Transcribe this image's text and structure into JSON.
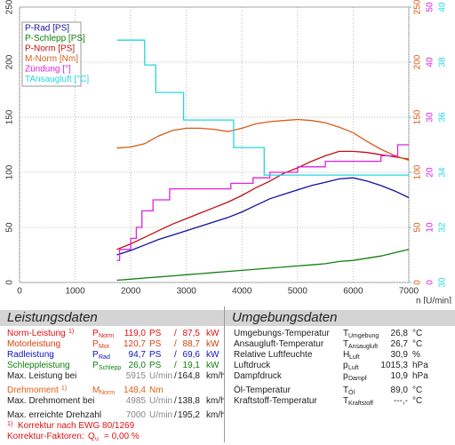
{
  "chart_data": {
    "type": "line",
    "xlabel": "n [U/min]",
    "xlim": [
      0,
      7000
    ],
    "xticks": [
      0,
      1000,
      2000,
      3000,
      4000,
      5000,
      6000,
      7000
    ],
    "ylim": [
      0,
      250
    ],
    "yticks": [
      0,
      50,
      100,
      150,
      200,
      250
    ],
    "right_axes": [
      {
        "id": "y2",
        "color": "#d85a1a",
        "lim": [
          0,
          250
        ],
        "ticks": [
          0,
          50,
          100,
          150,
          200,
          250
        ]
      },
      {
        "id": "y3",
        "color": "#e020e0",
        "lim": [
          0,
          50
        ],
        "ticks": [
          0,
          10,
          20,
          30,
          40,
          50
        ]
      },
      {
        "id": "y4",
        "color": "#20d8e0",
        "lim": [
          30,
          40
        ],
        "ticks": [
          30,
          32,
          34,
          36,
          38,
          40
        ]
      }
    ],
    "grid": true,
    "legend": "upper left",
    "series": [
      {
        "name": "P-Rad [PS]",
        "color": "#1010a0",
        "axis": "y",
        "x": [
          1750,
          2000,
          2250,
          2500,
          2750,
          3000,
          3250,
          3500,
          3750,
          4000,
          4250,
          4500,
          4750,
          5000,
          5250,
          5500,
          5750,
          6000,
          6250,
          6500,
          6750,
          7000
        ],
        "values": [
          25,
          29,
          34,
          39,
          43,
          47,
          51,
          55,
          59,
          64,
          70,
          76,
          80,
          84,
          88,
          91,
          94,
          95,
          92,
          88,
          83,
          77
        ]
      },
      {
        "name": "P-Schlepp [PS]",
        "color": "#108010",
        "axis": "y",
        "x": [
          1750,
          2000,
          2250,
          2500,
          2750,
          3000,
          3250,
          3500,
          3750,
          4000,
          4250,
          4500,
          4750,
          5000,
          5250,
          5500,
          5750,
          6000,
          6250,
          6500,
          6750,
          7000
        ],
        "values": [
          2,
          3,
          4,
          5,
          6,
          7,
          8,
          9,
          10,
          11,
          12,
          13,
          14,
          15,
          16,
          17,
          19,
          20,
          22,
          24,
          27,
          30
        ]
      },
      {
        "name": "P-Norm [PS]",
        "color": "#c01010",
        "axis": "y",
        "x": [
          1750,
          2000,
          2250,
          2500,
          2750,
          3000,
          3250,
          3500,
          3750,
          4000,
          4250,
          4500,
          4750,
          5000,
          5250,
          5500,
          5750,
          6000,
          6250,
          6500,
          6750,
          7000
        ],
        "values": [
          30,
          35,
          41,
          47,
          53,
          58,
          63,
          68,
          73,
          79,
          86,
          92,
          99,
          104,
          110,
          115,
          119,
          119,
          118,
          116,
          114,
          112
        ]
      },
      {
        "name": "M-Norm [Nm]",
        "color": "#d85a1a",
        "axis": "y2",
        "x": [
          1750,
          2000,
          2250,
          2500,
          2750,
          3000,
          3250,
          3500,
          3750,
          4000,
          4250,
          4500,
          4750,
          5000,
          5250,
          5500,
          5750,
          6000,
          6250,
          6500,
          6750,
          7000
        ],
        "values": [
          122,
          123,
          126,
          133,
          138,
          140,
          140,
          139,
          137,
          140,
          144,
          146,
          147,
          148,
          147,
          145,
          141,
          136,
          128,
          121,
          115,
          111
        ]
      },
      {
        "name": "Zündung [°]",
        "color": "#e020e0",
        "axis": "y3",
        "x": [
          1750,
          1800,
          1800,
          2000,
          2000,
          2100,
          2100,
          2200,
          2200,
          2400,
          2400,
          2700,
          2700,
          3800,
          3800,
          4200,
          4200,
          4500,
          4500,
          5000,
          5000,
          5500,
          5500,
          6500,
          6500,
          6800,
          6800,
          7000
        ],
        "values": [
          4,
          4,
          6,
          6,
          8,
          8,
          10,
          10,
          13,
          13,
          15,
          15,
          17,
          17,
          18,
          18,
          19,
          19,
          20,
          20,
          21,
          21,
          22,
          22,
          23,
          23,
          25,
          25
        ]
      },
      {
        "name": "TAnsaugluft [°C]",
        "color": "#20d8e0",
        "axis": "y4",
        "x": [
          1750,
          2250,
          2250,
          2450,
          2450,
          2950,
          2950,
          3850,
          3850,
          4400,
          4400,
          7000
        ],
        "values": [
          38.8,
          38.8,
          37.9,
          37.9,
          36.9,
          36.9,
          35.9,
          35.9,
          34.9,
          34.9,
          33.9,
          33.9
        ]
      }
    ]
  },
  "leistungsdaten": {
    "title": "Leistungsdaten",
    "rows": [
      {
        "label": "Norm-Leistung",
        "note": "1)",
        "symbol": "P",
        "sub": "Norm",
        "value": "119,0",
        "unit": "PS",
        "sep": "/",
        "value2": "87,5",
        "unit2": "kW",
        "color": "#e01010"
      },
      {
        "label": "Motorleistung",
        "symbol": "P",
        "sub": "Mot",
        "value": "120,7",
        "unit": "PS",
        "sep": "/",
        "value2": "88,7",
        "unit2": "kW",
        "color": "#d84010"
      },
      {
        "label": "Radleistung",
        "symbol": "P",
        "sub": "Rad",
        "value": "94,7",
        "unit": "PS",
        "sep": "/",
        "value2": "69,6",
        "unit2": "kW",
        "color": "#1010c0"
      },
      {
        "label": "Schleppleistung",
        "symbol": "P",
        "sub": "Schlepp",
        "value": "26,0",
        "unit": "PS",
        "sep": "/",
        "value2": "19,1",
        "unit2": "kW",
        "color": "#108010"
      },
      {
        "label": "Max. Leistung bei",
        "value": "5915",
        "unit": "U/min",
        "sep": "/",
        "value2": "164,8",
        "unit2": "km/h",
        "color": "#202020"
      },
      {
        "label": "Drehmoment",
        "note": "1)",
        "symbol": "M",
        "sub": "Norm",
        "value": "148,4",
        "unit": "Nm",
        "color": "#e06010"
      },
      {
        "label": "Max. Drehmoment bei",
        "value": "4985",
        "unit": "U/min",
        "sep": "/",
        "value2": "138,8",
        "unit2": "km/h",
        "color": "#202020"
      },
      {
        "label": "Max. erreichte Drehzahl",
        "value": "7000",
        "unit": "U/min",
        "sep": "/",
        "value2": "195,2",
        "unit2": "km/h",
        "color": "#202020"
      },
      {
        "note": "1)",
        "label": "Korrektur nach EWG 80/1269",
        "color": "#e01010"
      },
      {
        "label": "Korrektur-Faktoren:",
        "symbol": "Q",
        "sub": "u",
        "value": "=  0,00 %",
        "color": "#e01010"
      }
    ]
  },
  "umgebungsdaten": {
    "title": "Umgebungsdaten",
    "rows": [
      {
        "label": "Umgebungs-Temperatur",
        "symbol": "T",
        "sub": "Umgebung",
        "value": "26,8",
        "unit": "°C"
      },
      {
        "label": "Ansaugluft-Temperatur",
        "symbol": "T",
        "sub": "Ansaugluft",
        "value": "26,7",
        "unit": "°C"
      },
      {
        "label": "Relative Luftfeuchte",
        "symbol": "H",
        "sub": "Luft",
        "value": "30,9",
        "unit": "%"
      },
      {
        "label": "Luftdruck",
        "symbol": "p",
        "sub": "Luft",
        "value": "1015,3",
        "unit": "hPa"
      },
      {
        "label": "Dampfdruck",
        "symbol": "p",
        "sub": "Dampf",
        "value": "10,9",
        "unit": "hPa"
      },
      {
        "label": "Öl-Temperatur",
        "symbol": "T",
        "sub": "Öl",
        "value": "89,0",
        "unit": "°C"
      },
      {
        "label": "Kraftstoff-Temperatur",
        "symbol": "T",
        "sub": "Kraftstoff",
        "value": "---,-",
        "unit": "°C"
      }
    ]
  }
}
